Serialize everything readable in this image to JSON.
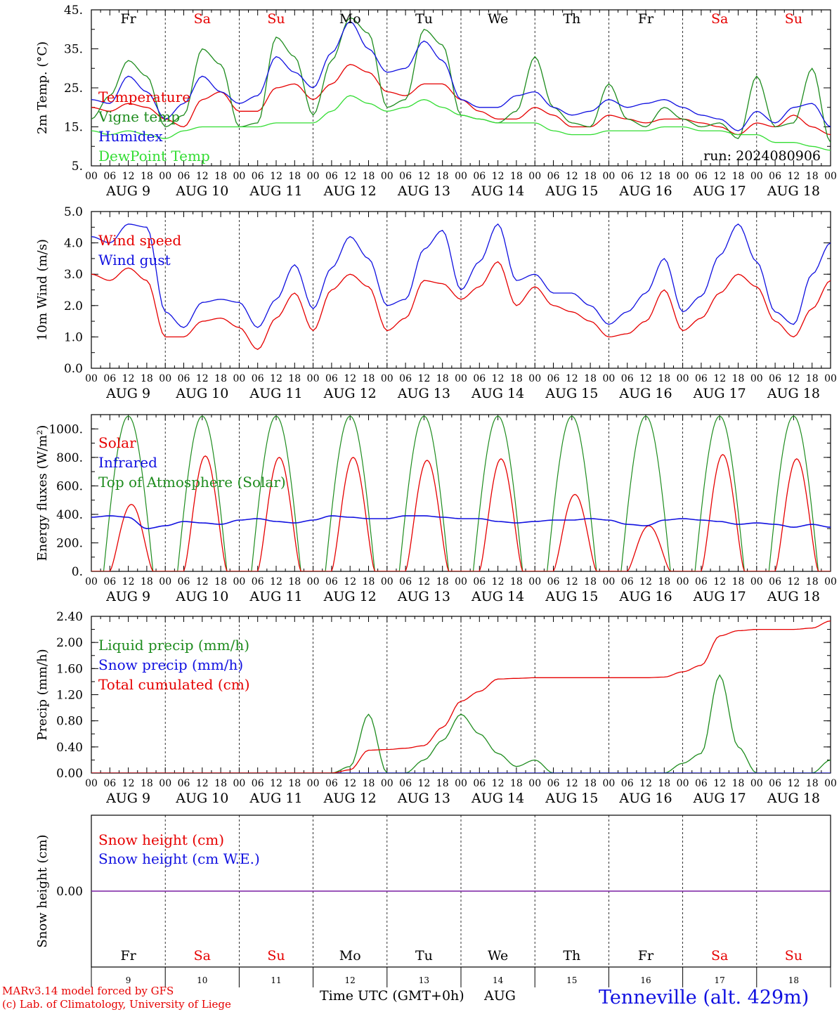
{
  "footer": {
    "model": "MARv3.14 model forced by GFS",
    "lab": "(c) Lab. of Climatology, University of Liege",
    "xaxis_title": "Time UTC (GMT+0h)",
    "month": "AUG",
    "station": "Tenneville (alt. 429m)"
  },
  "colors": {
    "red": "#e60000",
    "green": "#1e8c1e",
    "blue": "#1010e0",
    "lightgreen": "#33dd33",
    "purple": "#7a1fa2"
  },
  "chart_data": [
    {
      "type": "line",
      "ylabel": "2m Temp. (°C)",
      "ylim": [
        5,
        45
      ],
      "yticks": [
        "45.",
        "35.",
        "25.",
        "15.",
        "5."
      ],
      "run_label": "run: 2024080906",
      "day_names": [
        "Fr",
        "Sa",
        "Su",
        "Mo",
        "Tu",
        "We",
        "Th",
        "Fr",
        "Sa",
        "Su"
      ],
      "weekend_flags": [
        false,
        true,
        true,
        false,
        false,
        false,
        false,
        false,
        true,
        true
      ],
      "hour_labels": [
        "00",
        "06",
        "12",
        "18"
      ],
      "date_labels": [
        "AUG  9",
        "AUG 10",
        "AUG 11",
        "AUG 12",
        "AUG 13",
        "AUG 14",
        "AUG 15",
        "AUG 16",
        "AUG 17",
        "AUG 18"
      ],
      "x_hours": [
        0,
        6,
        12,
        18,
        24,
        30,
        36,
        42,
        48,
        54,
        60,
        66,
        72,
        78,
        84,
        90,
        96,
        102,
        108,
        114,
        120,
        126,
        132,
        138,
        144,
        150,
        156,
        162,
        168,
        174,
        180,
        186,
        192,
        198,
        204,
        210,
        216,
        222,
        228,
        234,
        240
      ],
      "series": [
        {
          "name": "Temperature",
          "color": "red",
          "values": [
            20,
            19,
            21,
            20,
            17,
            15,
            22,
            24,
            19,
            19,
            25,
            26,
            22,
            26,
            31,
            29,
            24,
            23,
            26,
            26,
            22,
            19,
            17,
            17,
            20,
            18,
            15,
            15,
            18,
            17,
            16,
            17,
            17,
            16,
            15,
            13,
            16,
            15,
            18,
            15,
            13
          ]
        },
        {
          "name": "Vigne temp",
          "color": "green",
          "values": [
            17,
            23,
            32,
            28,
            15,
            18,
            35,
            31,
            15,
            16,
            38,
            33,
            18,
            32,
            43,
            39,
            20,
            22,
            40,
            36,
            18,
            17,
            16,
            19,
            33,
            20,
            16,
            15,
            26,
            17,
            15,
            20,
            17,
            15,
            16,
            12,
            28,
            15,
            16,
            30,
            11
          ]
        },
        {
          "name": "Humidex",
          "color": "blue",
          "values": [
            22,
            21,
            28,
            24,
            17,
            21,
            28,
            24,
            21,
            23,
            33,
            29,
            25,
            34,
            42,
            35,
            29,
            30,
            37,
            32,
            22,
            20,
            20,
            23,
            24,
            20,
            18,
            19,
            22,
            20,
            21,
            22,
            20,
            18,
            17,
            14,
            19,
            16,
            20,
            21,
            15
          ]
        },
        {
          "name": "DewPoint Temp",
          "color": "lightgreen",
          "values": [
            14,
            13,
            14,
            13,
            12,
            14,
            15,
            15,
            15,
            15,
            16,
            16,
            16,
            19,
            23,
            21,
            19,
            20,
            22,
            20,
            18,
            17,
            16,
            16,
            16,
            14,
            13,
            13,
            14,
            14,
            14,
            15,
            15,
            14,
            14,
            13,
            13,
            11,
            11,
            10,
            9
          ]
        }
      ]
    },
    {
      "type": "line",
      "ylabel": "10m Wind (m/s)",
      "ylim": [
        0,
        5
      ],
      "yticks": [
        "5.0",
        "4.0",
        "3.0",
        "2.0",
        "1.0",
        "0.0"
      ],
      "x_hours": [
        0,
        6,
        12,
        18,
        24,
        30,
        36,
        42,
        48,
        54,
        60,
        66,
        72,
        78,
        84,
        90,
        96,
        102,
        108,
        114,
        120,
        126,
        132,
        138,
        144,
        150,
        156,
        162,
        168,
        174,
        180,
        186,
        192,
        198,
        204,
        210,
        216,
        222,
        228,
        234,
        240
      ],
      "series": [
        {
          "name": "Wind speed",
          "color": "red",
          "values": [
            3.0,
            2.8,
            3.2,
            2.8,
            1.0,
            1.0,
            1.5,
            1.6,
            1.3,
            0.6,
            1.6,
            2.4,
            1.2,
            2.5,
            3.0,
            2.6,
            1.2,
            1.6,
            2.8,
            2.7,
            2.2,
            2.6,
            3.4,
            2.0,
            2.6,
            2.0,
            1.8,
            1.5,
            1.0,
            1.1,
            1.5,
            2.5,
            1.2,
            1.6,
            2.4,
            3.0,
            2.6,
            1.5,
            1.0,
            1.9,
            2.8
          ]
        },
        {
          "name": "Wind gust",
          "color": "blue",
          "values": [
            4.2,
            4.0,
            4.6,
            4.5,
            1.8,
            1.3,
            2.1,
            2.2,
            2.1,
            1.3,
            2.2,
            3.3,
            1.9,
            3.2,
            4.2,
            3.5,
            2.0,
            2.2,
            3.8,
            4.4,
            2.5,
            3.4,
            4.6,
            2.8,
            3.0,
            2.4,
            2.4,
            2.0,
            1.4,
            1.8,
            2.4,
            3.5,
            1.8,
            2.3,
            3.6,
            4.6,
            3.4,
            1.8,
            1.4,
            3.0,
            4.0
          ]
        }
      ]
    },
    {
      "type": "line",
      "ylabel": "Energy fluxes (W/m²)",
      "ylim": [
        0,
        1100
      ],
      "yticks": [
        "1000.",
        "800.",
        "600.",
        "400.",
        "200.",
        "0."
      ],
      "series": [
        {
          "name": "Solar",
          "color": "red",
          "daily_peaks": [
            470,
            810,
            800,
            800,
            780,
            790,
            540,
            320,
            820,
            790
          ]
        },
        {
          "name": "Infrared",
          "color": "blue",
          "values": [
            380,
            390,
            380,
            300,
            320,
            350,
            340,
            330,
            360,
            370,
            350,
            340,
            360,
            390,
            380,
            370,
            370,
            390,
            390,
            380,
            370,
            370,
            350,
            340,
            350,
            360,
            360,
            370,
            360,
            330,
            320,
            360,
            370,
            360,
            350,
            330,
            340,
            330,
            310,
            330,
            310
          ]
        },
        {
          "name": "Top of Atmosphere (Solar)",
          "color": "green",
          "daily_peak": 1090
        }
      ]
    },
    {
      "type": "line",
      "ylabel": "Precip (mm/h)",
      "ylim": [
        0,
        2.4
      ],
      "yticks": [
        "2.40",
        "2.00",
        "1.60",
        "1.20",
        "0.80",
        "0.40",
        "0.00"
      ],
      "series": [
        {
          "name": "Liquid precip (mm/h)",
          "color": "green",
          "values": [
            0,
            0,
            0,
            0,
            0,
            0,
            0,
            0,
            0,
            0,
            0,
            0,
            0,
            0,
            0.1,
            0.9,
            0,
            0,
            0.2,
            0.5,
            0.9,
            0.6,
            0.3,
            0.1,
            0.2,
            0,
            0,
            0,
            0,
            0,
            0,
            0,
            0.15,
            0.3,
            1.5,
            0.4,
            0,
            0,
            0,
            0,
            0.2
          ]
        },
        {
          "name": "Snow precip (mm/h)",
          "color": "blue",
          "values": [
            0,
            0,
            0,
            0,
            0,
            0,
            0,
            0,
            0,
            0,
            0,
            0,
            0,
            0,
            0,
            0,
            0,
            0,
            0,
            0,
            0,
            0,
            0,
            0,
            0,
            0,
            0,
            0,
            0,
            0,
            0,
            0,
            0,
            0,
            0,
            0,
            0,
            0,
            0,
            0,
            0
          ]
        },
        {
          "name": "Total cumulated (cm)",
          "color": "red",
          "values": [
            0,
            0,
            0,
            0,
            0,
            0,
            0,
            0,
            0,
            0,
            0,
            0,
            0,
            0,
            0.05,
            0.35,
            0.36,
            0.38,
            0.42,
            0.7,
            1.1,
            1.25,
            1.44,
            1.45,
            1.46,
            1.46,
            1.46,
            1.46,
            1.46,
            1.46,
            1.46,
            1.47,
            1.55,
            1.65,
            2.1,
            2.18,
            2.2,
            2.2,
            2.2,
            2.22,
            2.33
          ]
        }
      ]
    },
    {
      "type": "line",
      "ylabel": "Snow height (cm)",
      "yticks": [
        "0.00"
      ],
      "date_numbers": [
        "9",
        "10",
        "11",
        "12",
        "13",
        "14",
        "15",
        "16",
        "17",
        "18"
      ],
      "series": [
        {
          "name": "Snow height (cm)",
          "color": "red",
          "values": [
            0,
            0
          ]
        },
        {
          "name": "Snow height (cm W.E.)",
          "color": "blue",
          "values": [
            0,
            0
          ]
        }
      ]
    }
  ]
}
